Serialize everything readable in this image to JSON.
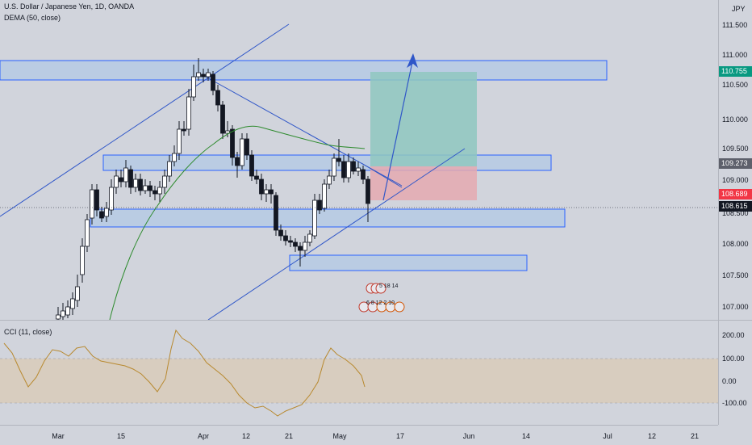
{
  "header": {
    "symbol_line": "U.S. Dollar / Japanese Yen, 1D, OANDA",
    "indicator_line": "DEMA (50, close)"
  },
  "cci": {
    "label": "CCI (11, close)"
  },
  "price_axis": {
    "currency": "JPY",
    "ticks": [
      "111.500",
      "111.000",
      "110.500",
      "110.000",
      "109.500",
      "109.000",
      "108.500",
      "108.000",
      "107.500",
      "107.000"
    ],
    "tags": {
      "target": "110.755",
      "entry": "109.273",
      "stop": "108.689",
      "last": "108.615"
    }
  },
  "cci_axis": {
    "ticks": [
      "200.00",
      "100.00",
      "0.00",
      "-100.00"
    ]
  },
  "time_axis": {
    "labels": [
      "Mar",
      "15",
      "Apr",
      "12",
      "21",
      "May",
      "17",
      "Jun",
      "14",
      "Jul",
      "12",
      "21"
    ]
  },
  "events": {
    "row1": "5 18 14",
    "row2": "6 8 12 2 10"
  },
  "colors": {
    "background": "#d1d4dc",
    "zone_fill": "#b7cbe3",
    "zone_border": "#2962ff",
    "trendline": "#2f56c8",
    "dema": "#2e8b2e",
    "cci_line": "#b8892f",
    "cci_band": "#d8cdbf",
    "long_target": "#8fc7bf",
    "long_stop": "#e5a9b0",
    "last_price_tag": "#131722",
    "stop_tag": "#f23645",
    "target_tag": "#089981",
    "entry_tag": "#5d606b"
  }
}
